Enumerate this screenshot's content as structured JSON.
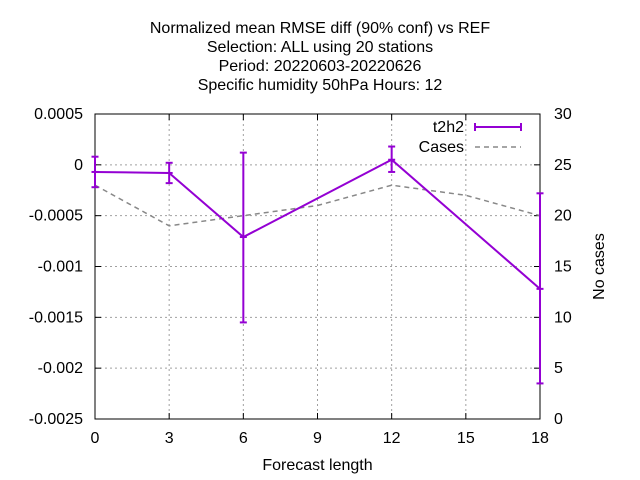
{
  "chart_data": {
    "type": "line",
    "title_lines": [
      "Normalized mean RMSE diff (90% conf) vs REF",
      "Selection: ALL using     20 stations",
      "Period: 20220603-20220626",
      "Specific humidity 50hPa   Hours:  12"
    ],
    "xlabel": "Forecast length",
    "ylabel": "",
    "y2label": "No cases",
    "x_ticks": [
      0,
      3,
      6,
      9,
      12,
      15,
      18
    ],
    "y_ticks": [
      0.0005,
      0,
      -0.0005,
      -0.001,
      -0.0015,
      -0.002,
      -0.0025
    ],
    "y_tick_labels": [
      "0.0005",
      "0",
      "-0.0005",
      "-0.001",
      "-0.0015",
      "-0.002",
      "-0.0025"
    ],
    "y2_ticks": [
      30,
      25,
      20,
      15,
      10,
      5,
      0
    ],
    "xlim": [
      0,
      18
    ],
    "ylim": [
      -0.0025,
      0.0005
    ],
    "y2lim": [
      0,
      30
    ],
    "grid": true,
    "legend_position": "top-right",
    "series": [
      {
        "name": "t2h2",
        "color": "#9400d3",
        "style": "line-errorbars",
        "x": [
          0,
          3,
          6,
          12,
          18
        ],
        "y": [
          -7e-05,
          -8e-05,
          -0.00071,
          5e-05,
          -0.00122
        ],
        "err_low": [
          -0.00022,
          -0.00018,
          -0.00155,
          -7e-05,
          -0.00215
        ],
        "err_high": [
          8e-05,
          2e-05,
          0.00012,
          0.00018,
          -0.00028
        ]
      },
      {
        "name": "Cases",
        "color": "#888888",
        "style": "dashed",
        "axis": "y2",
        "x": [
          0,
          3,
          6,
          9,
          12,
          15,
          18
        ],
        "y": [
          23,
          19,
          20,
          21,
          23,
          22,
          20
        ]
      }
    ]
  }
}
